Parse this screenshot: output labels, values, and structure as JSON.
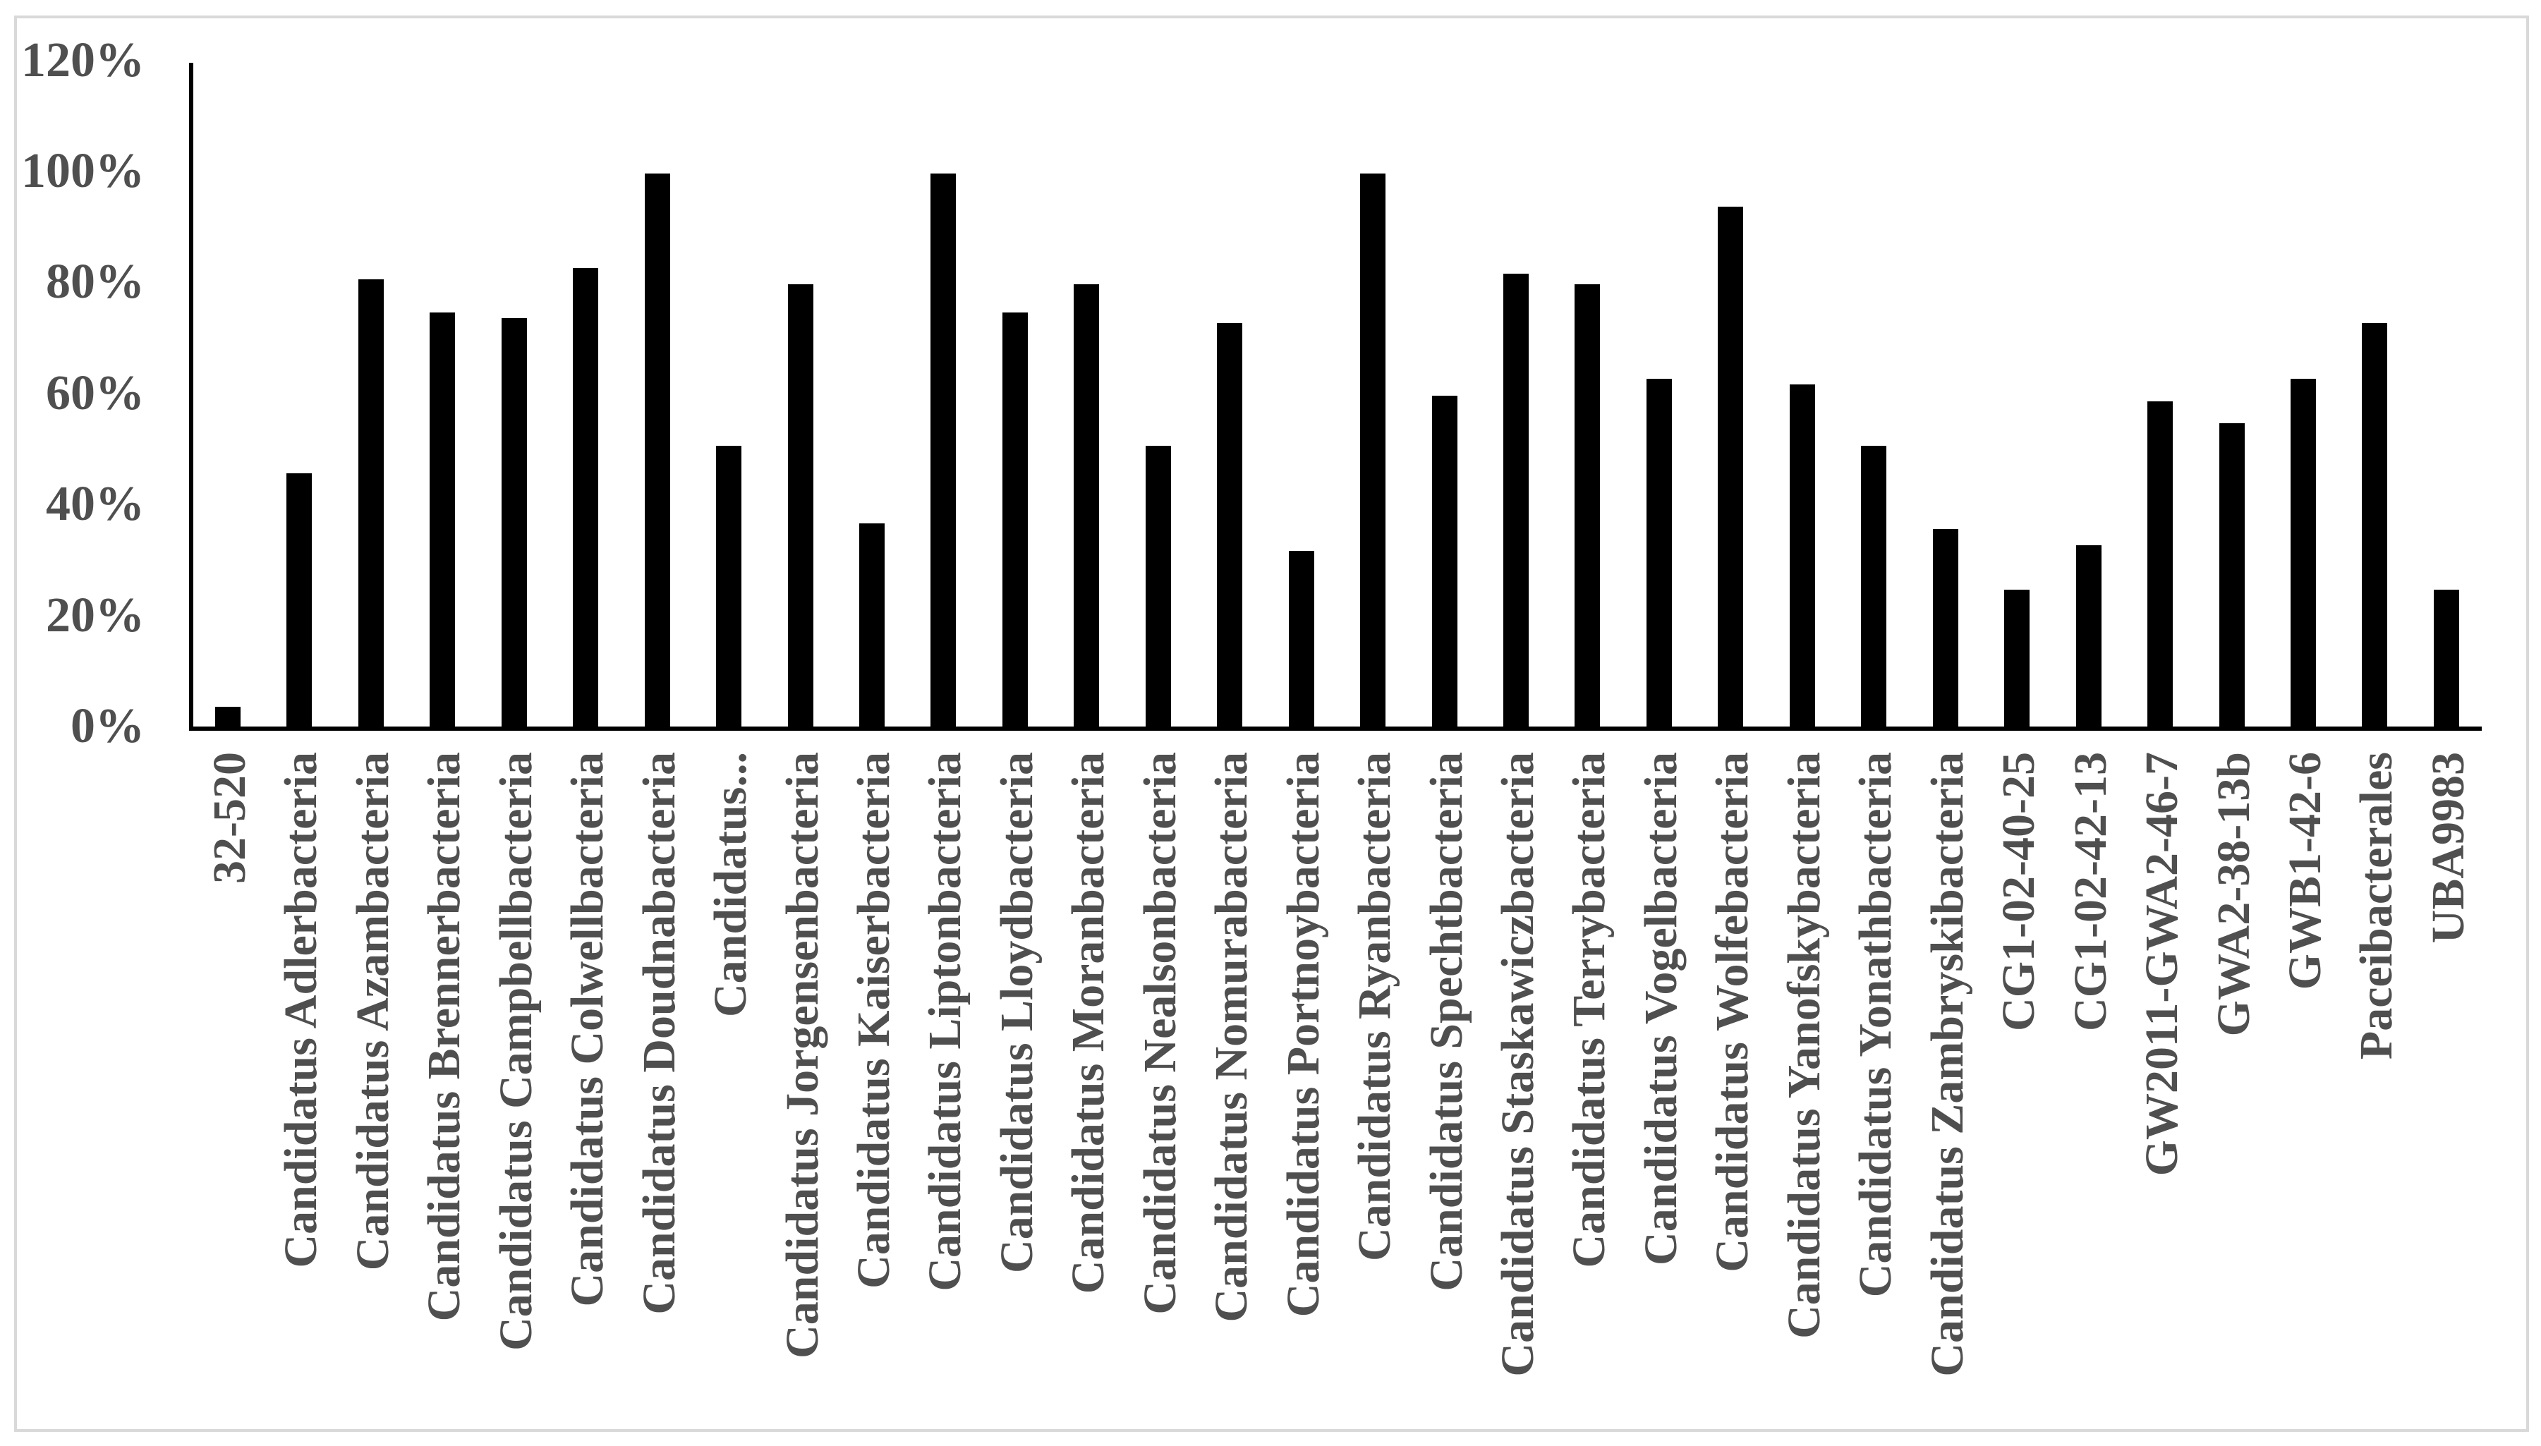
{
  "chart_data": {
    "type": "bar",
    "title": "",
    "xlabel": "",
    "ylabel": "",
    "categories": [
      "32-520",
      "Candidatus Adlerbacteria",
      "Candidatus Azambacteria",
      "Candidatus Brennerbacteria",
      "Candidatus Campbellbacteria",
      "Candidatus Colwellbacteria",
      "Candidatus Doudnabacteria",
      "Candidatus...",
      "Candidatus Jorgensenbacteria",
      "Candidatus Kaiserbacteria",
      "Candidatus Liptonbacteria",
      "Candidatus Lloydbacteria",
      "Candidatus Moranbacteria",
      "Candidatus Nealsonbacteria",
      "Candidatus Nomurabacteria",
      "Candidatus Portnoybacteria",
      "Candidatus Ryanbacteria",
      "Candidatus Spechtbacteria",
      "Candidatus Staskawiczbacteria",
      "Candidatus Terrybacteria",
      "Candidatus Vogelbacteria",
      "Candidatus Wolfebacteria",
      "Candidatus Yanofskybacteria",
      "Candidatus Yonathbacteria",
      "Candidatus Zambryskibacteria",
      "CG1-02-40-25",
      "CG1-02-42-13",
      "GW2011-GWA2-46-7",
      "GWA2-38-13b",
      "GWB1-42-6",
      "Paceibacterales",
      "UBA9983"
    ],
    "values": [
      4,
      46,
      81,
      75,
      74,
      83,
      100,
      51,
      80,
      37,
      100,
      75,
      80,
      51,
      73,
      32,
      100,
      60,
      82,
      80,
      63,
      94,
      62,
      51,
      36,
      25,
      33,
      59,
      55,
      63,
      73,
      25
    ],
    "value_unit": "%",
    "ylim": [
      0,
      120
    ],
    "y_ticks": [
      "0%",
      "20%",
      "40%",
      "60%",
      "80%",
      "100%",
      "120%"
    ],
    "grid": "off",
    "legend": "none",
    "bar_color": "#000000",
    "axis_color": "#000000",
    "tick_label_color": "#4f4f4f",
    "frame_color": "#d9d9d9",
    "background_color": "#ffffff"
  }
}
